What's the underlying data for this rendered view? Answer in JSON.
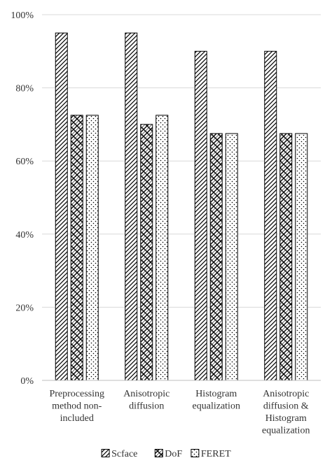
{
  "chart_data": {
    "type": "bar",
    "categories": [
      [
        "Preprocessing",
        "method non-",
        "included"
      ],
      [
        "Anisotropic",
        "diffusion"
      ],
      [
        "Histogram",
        "equalization"
      ],
      [
        "Anisotropic",
        "diffusion &",
        "Histogram",
        "equalization"
      ]
    ],
    "series": [
      {
        "name": "Scface",
        "values": [
          95,
          95,
          90,
          90
        ],
        "pattern": "diagonal-hatch"
      },
      {
        "name": "DoF",
        "values": [
          72.5,
          70,
          67.5,
          67.5
        ],
        "pattern": "diamond-weave"
      },
      {
        "name": "FERET",
        "values": [
          72.5,
          72.5,
          67.5,
          67.5
        ],
        "pattern": "dots"
      }
    ],
    "ylim": [
      0,
      100
    ],
    "yticks": [
      "0%",
      "20%",
      "40%",
      "60%",
      "80%",
      "100%"
    ],
    "ytick_values": [
      0,
      20,
      40,
      60,
      80,
      100
    ],
    "grid": true,
    "legend_position": "bottom",
    "colors": {
      "bar_edge": "#000000",
      "grid": "#d9d9d9",
      "axis": "#bfbfbf",
      "text": "#333333"
    }
  }
}
